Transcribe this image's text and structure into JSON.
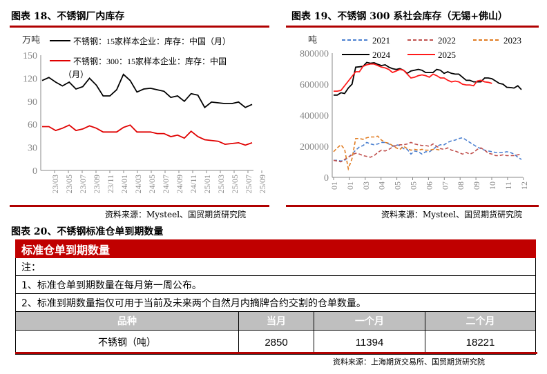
{
  "chart_data": [
    {
      "type": "line",
      "title": "图表 18、不锈钢厂内库存",
      "ylabel": "万吨",
      "ylim": [
        0,
        150
      ],
      "yticks": [
        0,
        30,
        60,
        90,
        120,
        150
      ],
      "x": [
        "23/03",
        "23/04",
        "23/05",
        "23/06",
        "23/07",
        "23/08",
        "23/09",
        "23/10",
        "23/11",
        "23/12",
        "24/01",
        "24/02",
        "24/03",
        "24/04",
        "24/05",
        "24/06",
        "24/07",
        "24/08",
        "24/09",
        "24/10",
        "24/11",
        "24/12",
        "25/01",
        "25/02",
        "25/03",
        "25/04",
        "25/05",
        "25/06",
        "25/07",
        "25/08",
        "25/09",
        "25/10"
      ],
      "xtick_labels": [
        "23/03",
        "23/05",
        "23/07",
        "23/09",
        "23/11",
        "24/01",
        "24/03",
        "24/05",
        "24/07",
        "24/09",
        "24/11",
        "25/01",
        "25/03",
        "25/05",
        "25/07",
        "25/09"
      ],
      "series": [
        {
          "name": "不锈钢：15家样本企业：库存：中国（月）",
          "color": "#000000",
          "values": [
            117,
            121,
            115,
            110,
            115,
            106,
            109,
            120,
            111,
            97,
            97,
            105,
            125,
            117,
            102,
            106,
            107,
            105,
            103,
            95,
            97,
            90,
            100,
            98,
            82,
            89,
            88,
            87,
            87,
            89,
            82,
            86
          ]
        },
        {
          "name": "不锈钢：300：15家样本企业：库存：中国（月）",
          "color": "#e00000",
          "values": [
            57,
            57,
            52,
            55,
            59,
            52,
            54,
            58,
            55,
            50,
            50,
            50,
            56,
            59,
            50,
            50,
            50,
            48,
            48,
            44,
            46,
            42,
            51,
            44,
            40,
            39,
            38,
            34,
            35,
            36,
            33,
            36
          ]
        }
      ],
      "source": "资料来源：Mysteel、国贸期货研究院"
    },
    {
      "type": "line",
      "title": "图表 19、不锈钢 300 系社会库存（无锡+佛山）",
      "ylabel": "吨",
      "ylim": [
        0,
        800000
      ],
      "yticks": [
        0,
        200000,
        400000,
        600000,
        800000
      ],
      "x_unit": "week",
      "x_range": [
        1,
        52
      ],
      "xtick_labels": [
        "01",
        "01",
        "03",
        "04",
        "05",
        "05",
        "06",
        "07",
        "08",
        "09",
        "10",
        "11",
        "12"
      ],
      "series": [
        {
          "name": "2021",
          "color": "#4a7fd0",
          "dash": true,
          "values": [
            110000,
            110000,
            105000,
            110000,
            130000,
            150000,
            175000,
            195000,
            205000,
            225000,
            215000,
            210000,
            215000,
            225000,
            225000,
            215000,
            200000,
            210000,
            205000,
            185000,
            180000,
            150000,
            170000,
            165000,
            150000,
            165000,
            165000,
            180000,
            200000,
            210000,
            210000,
            225000,
            235000,
            240000,
            250000,
            255000,
            240000,
            225000,
            210000,
            195000,
            185000,
            175000,
            170000,
            165000,
            160000,
            160000,
            160000,
            165000,
            160000,
            150000,
            130000,
            115000
          ]
        },
        {
          "name": "2022",
          "color": "#c0504d",
          "dash": true,
          "values": [
            110000,
            105000,
            100000,
            115000,
            130000,
            145000,
            155000,
            150000,
            140000,
            135000,
            130000,
            140000,
            160000,
            175000,
            170000,
            180000,
            195000,
            205000,
            210000,
            210000,
            215000,
            225000,
            215000,
            210000,
            205000,
            205000,
            200000,
            215000,
            200000,
            185000,
            180000,
            190000,
            175000,
            170000,
            160000,
            150000,
            160000,
            150000,
            160000,
            180000,
            190000,
            175000,
            155000,
            150000,
            140000,
            140000,
            145000,
            140000,
            140000,
            140000,
            145000,
            150000
          ]
        },
        {
          "name": "2023",
          "color": "#e07b20",
          "dash": true,
          "values": [
            165000,
            190000,
            210000,
            180000,
            55000,
            120000,
            250000,
            250000,
            245000,
            255000,
            260000,
            260000,
            265000,
            240000,
            225000,
            220000,
            205000,
            190000,
            180000,
            200000,
            185000,
            175000,
            180000,
            175000,
            180000,
            175000,
            175000,
            180000,
            180000,
            175000
          ]
        },
        {
          "name": "2024",
          "color": "#000000",
          "values": [
            530000,
            530000,
            545000,
            540000,
            575000,
            600000,
            710000,
            712000,
            715000,
            740000,
            735000,
            738000,
            728000,
            720000,
            725000,
            710000,
            700000,
            695000,
            700000,
            690000,
            670000,
            685000,
            690000,
            695000,
            690000,
            675000,
            675000,
            675000,
            695000,
            690000,
            670000,
            680000,
            670000,
            665000,
            665000,
            645000,
            625000,
            625000,
            615000,
            615000,
            615000,
            640000,
            640000,
            635000,
            620000,
            605000,
            600000,
            580000,
            578000,
            575000,
            590000,
            565000
          ]
        },
        {
          "name": "2025",
          "color": "#ff1a1a",
          "values": [
            555000,
            555000,
            560000,
            590000,
            620000,
            650000,
            680000,
            680000,
            715000,
            725000,
            730000,
            730000,
            720000,
            710000,
            705000,
            695000,
            675000,
            685000,
            695000,
            690000,
            665000,
            640000,
            645000,
            655000,
            660000,
            655000,
            645000,
            665000,
            655000,
            640000,
            640000,
            625000,
            615000,
            620000,
            615000,
            600000,
            595000,
            595000,
            590000,
            620000,
            625000,
            615000,
            612000,
            605000
          ]
        }
      ],
      "source": "资料来源：Mysteel、国贸期货研究院"
    }
  ],
  "table": {
    "title": "图表 20、不锈钢标准仓单到期数量",
    "header": "标准仓单到期数量",
    "note_label": "注：",
    "note1": "1、标准仓单到期数量在每月第一周公布。",
    "note2": "2、标准到期数量指仅可用于当前及未来两个自然月内摘牌合约交割的仓单数量。",
    "columns": [
      "品种",
      "当月",
      "一个月",
      "二个月"
    ],
    "rows": [
      [
        "不锈钢（吨）",
        "2850",
        "11394",
        "18221"
      ]
    ],
    "source": "资料来源：上海期货交易所、国贸期货研究院"
  }
}
